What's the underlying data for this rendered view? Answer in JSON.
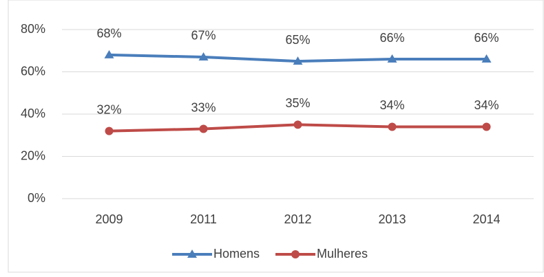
{
  "chart_data": {
    "type": "line",
    "categories": [
      "2009",
      "2011",
      "2012",
      "2013",
      "2014"
    ],
    "series": [
      {
        "name": "Homens",
        "color": "#4a7ebb",
        "marker": "triangle",
        "values": [
          68,
          67,
          65,
          66,
          66
        ],
        "value_labels": [
          "68%",
          "67%",
          "65%",
          "66%",
          "66%"
        ]
      },
      {
        "name": "Mulheres",
        "color": "#be4b48",
        "marker": "circle",
        "values": [
          32,
          33,
          35,
          34,
          34
        ],
        "value_labels": [
          "32%",
          "33%",
          "35%",
          "34%",
          "34%"
        ]
      }
    ],
    "ylim": [
      0,
      80
    ],
    "yticks": [
      {
        "value": 0,
        "label": "0%"
      },
      {
        "value": 20,
        "label": "20%"
      },
      {
        "value": 40,
        "label": "40%"
      },
      {
        "value": 60,
        "label": "60%"
      },
      {
        "value": 80,
        "label": "80%"
      }
    ],
    "grid": true,
    "legend": "bottom"
  }
}
